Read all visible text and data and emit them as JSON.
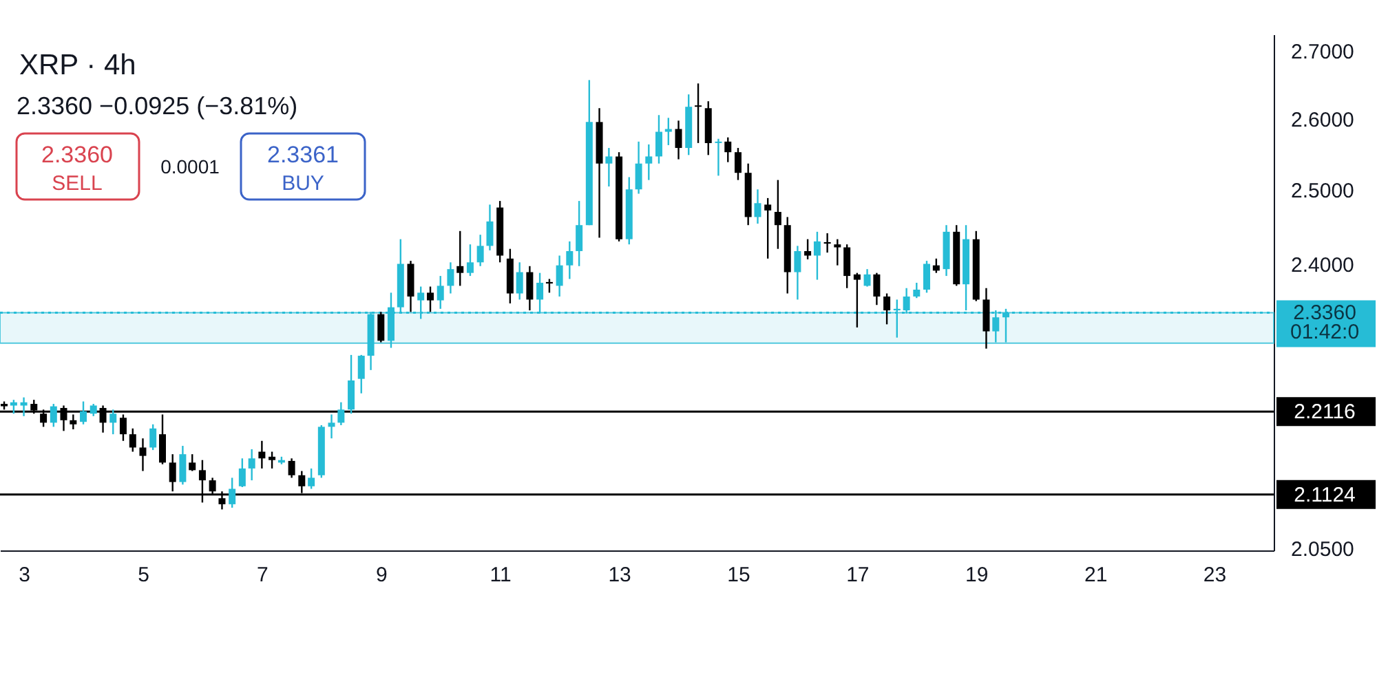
{
  "chart_data": {
    "type": "candlestick",
    "title": "XRP · 4h",
    "subtitle": "2.3360 −0.0925 (−3.81%)",
    "annotations": [
      "2.3360",
      "SELL",
      "0.0001",
      "2.3361",
      "BUY",
      "01:42:0"
    ],
    "x": [
      2.67,
      2.83,
      3,
      3.17,
      3.33,
      3.5,
      3.67,
      3.83,
      4,
      4.17,
      4.33,
      4.5,
      4.67,
      4.83,
      5,
      5.17,
      5.33,
      5.5,
      5.67,
      5.83,
      6,
      6.17,
      6.33,
      6.5,
      6.67,
      6.83,
      7,
      7.17,
      7.33,
      7.5,
      7.67,
      7.83,
      8,
      8.17,
      8.33,
      8.5,
      8.67,
      8.83,
      9,
      9.17,
      9.33,
      9.5,
      9.67,
      9.83,
      10,
      10.17,
      10.33,
      10.5,
      10.67,
      10.83,
      11,
      11.17,
      11.33,
      11.5,
      11.67,
      11.83,
      12,
      12.17,
      12.33,
      12.5,
      12.67,
      12.83,
      13,
      13.17,
      13.33,
      13.5,
      13.67,
      13.83,
      14,
      14.17,
      14.33,
      14.5,
      14.67,
      14.83,
      15,
      15.17,
      15.33,
      15.5,
      15.67,
      15.83,
      16,
      16.17,
      16.33,
      16.5,
      16.67,
      16.83,
      17,
      17.17,
      17.33,
      17.5,
      17.67,
      17.83,
      18,
      18.17,
      18.33,
      18.5,
      18.67,
      18.83,
      19,
      19.17,
      19.33,
      19.5
    ],
    "ohlc": [
      [
        2.221,
        2.224,
        2.214,
        2.218
      ],
      [
        2.219,
        2.226,
        2.209,
        2.223
      ],
      [
        2.219,
        2.229,
        2.206,
        2.223
      ],
      [
        2.221,
        2.226,
        2.209,
        2.213
      ],
      [
        2.209,
        2.214,
        2.193,
        2.198
      ],
      [
        2.198,
        2.221,
        2.193,
        2.218
      ],
      [
        2.216,
        2.219,
        2.188,
        2.201
      ],
      [
        2.201,
        2.208,
        2.19,
        2.196
      ],
      [
        2.199,
        2.224,
        2.196,
        2.212
      ],
      [
        2.209,
        2.221,
        2.206,
        2.219
      ],
      [
        2.216,
        2.219,
        2.186,
        2.198
      ],
      [
        2.198,
        2.214,
        2.184,
        2.209
      ],
      [
        2.204,
        2.208,
        2.176,
        2.184
      ],
      [
        2.184,
        2.191,
        2.163,
        2.168
      ],
      [
        2.168,
        2.179,
        2.14,
        2.158
      ],
      [
        2.168,
        2.196,
        2.165,
        2.191
      ],
      [
        2.184,
        2.208,
        2.148,
        2.15
      ],
      [
        2.15,
        2.16,
        2.116,
        2.127
      ],
      [
        2.127,
        2.17,
        2.124,
        2.16
      ],
      [
        2.15,
        2.16,
        2.14,
        2.141
      ],
      [
        2.141,
        2.153,
        2.103,
        2.129
      ],
      [
        2.129,
        2.132,
        2.113,
        2.116
      ],
      [
        2.108,
        2.116,
        2.095,
        2.101
      ],
      [
        2.101,
        2.132,
        2.097,
        2.119
      ],
      [
        2.122,
        2.155,
        2.121,
        2.143
      ],
      [
        2.143,
        2.166,
        2.129,
        2.155
      ],
      [
        2.163,
        2.176,
        2.143,
        2.155
      ],
      [
        2.157,
        2.163,
        2.143,
        2.153
      ],
      [
        2.15,
        2.157,
        2.148,
        2.153
      ],
      [
        2.152,
        2.155,
        2.132,
        2.135
      ],
      [
        2.135,
        2.14,
        2.114,
        2.122
      ],
      [
        2.122,
        2.143,
        2.119,
        2.132
      ],
      [
        2.135,
        2.195,
        2.132,
        2.193
      ],
      [
        2.193,
        2.208,
        2.179,
        2.198
      ],
      [
        2.198,
        2.223,
        2.195,
        2.214
      ],
      [
        2.214,
        2.282,
        2.209,
        2.25
      ],
      [
        2.252,
        2.282,
        2.234,
        2.281
      ],
      [
        2.281,
        2.337,
        2.263,
        2.334
      ],
      [
        2.334,
        2.337,
        2.298,
        2.3
      ],
      [
        2.3,
        2.362,
        2.291,
        2.343
      ],
      [
        2.343,
        2.433,
        2.337,
        2.4
      ],
      [
        2.4,
        2.404,
        2.337,
        2.357
      ],
      [
        2.352,
        2.37,
        2.328,
        2.362
      ],
      [
        2.362,
        2.37,
        2.337,
        2.352
      ],
      [
        2.352,
        2.384,
        2.341,
        2.371
      ],
      [
        2.371,
        2.402,
        2.361,
        2.393
      ],
      [
        2.397,
        2.444,
        2.371,
        2.388
      ],
      [
        2.388,
        2.426,
        2.384,
        2.402
      ],
      [
        2.402,
        2.439,
        2.397,
        2.424
      ],
      [
        2.424,
        2.48,
        2.418,
        2.457
      ],
      [
        2.476,
        2.485,
        2.402,
        2.411
      ],
      [
        2.407,
        2.42,
        2.348,
        2.361
      ],
      [
        2.361,
        2.402,
        2.353,
        2.389
      ],
      [
        2.389,
        2.397,
        2.339,
        2.353
      ],
      [
        2.353,
        2.388,
        2.335,
        2.375
      ],
      [
        2.376,
        2.38,
        2.362,
        2.374
      ],
      [
        2.371,
        2.411,
        2.357,
        2.398
      ],
      [
        2.398,
        2.43,
        2.38,
        2.417
      ],
      [
        2.417,
        2.485,
        2.397,
        2.452
      ],
      [
        2.452,
        2.657,
        2.452,
        2.596
      ],
      [
        2.596,
        2.616,
        2.435,
        2.537
      ],
      [
        2.537,
        2.559,
        2.505,
        2.547
      ],
      [
        2.547,
        2.553,
        2.43,
        2.433
      ],
      [
        2.433,
        2.518,
        2.426,
        2.501
      ],
      [
        2.501,
        2.568,
        2.495,
        2.537
      ],
      [
        2.537,
        2.564,
        2.514,
        2.547
      ],
      [
        2.547,
        2.606,
        2.537,
        2.582
      ],
      [
        2.582,
        2.602,
        2.563,
        2.586
      ],
      [
        2.586,
        2.598,
        2.543,
        2.559
      ],
      [
        2.559,
        2.636,
        2.549,
        2.618
      ],
      [
        2.62,
        2.652,
        2.566,
        2.618
      ],
      [
        2.616,
        2.626,
        2.549,
        2.566
      ],
      [
        2.566,
        2.572,
        2.52,
        2.568
      ],
      [
        2.568,
        2.574,
        2.539,
        2.553
      ],
      [
        2.553,
        2.559,
        2.514,
        2.524
      ],
      [
        2.524,
        2.537,
        2.452,
        2.463
      ],
      [
        2.463,
        2.501,
        2.454,
        2.482
      ],
      [
        2.48,
        2.489,
        2.407,
        2.472
      ],
      [
        2.47,
        2.514,
        2.42,
        2.452
      ],
      [
        2.452,
        2.463,
        2.361,
        2.389
      ],
      [
        2.389,
        2.424,
        2.353,
        2.417
      ],
      [
        2.417,
        2.433,
        2.406,
        2.411
      ],
      [
        2.411,
        2.443,
        2.379,
        2.43
      ],
      [
        2.429,
        2.441,
        2.415,
        2.427
      ],
      [
        2.426,
        2.433,
        2.398,
        2.422
      ],
      [
        2.422,
        2.426,
        2.368,
        2.384
      ],
      [
        2.386,
        2.388,
        2.317,
        2.379
      ],
      [
        2.371,
        2.393,
        2.37,
        2.386
      ],
      [
        2.386,
        2.388,
        2.346,
        2.357
      ],
      [
        2.357,
        2.361,
        2.321,
        2.339
      ],
      [
        2.339,
        2.353,
        2.304,
        2.341
      ],
      [
        2.339,
        2.368,
        2.335,
        2.357
      ],
      [
        2.357,
        2.375,
        2.355,
        2.366
      ],
      [
        2.366,
        2.404,
        2.362,
        2.4
      ],
      [
        2.398,
        2.407,
        2.388,
        2.391
      ],
      [
        2.393,
        2.452,
        2.384,
        2.443
      ],
      [
        2.443,
        2.452,
        2.371,
        2.373
      ],
      [
        2.373,
        2.452,
        2.339,
        2.433
      ],
      [
        2.433,
        2.444,
        2.351,
        2.353
      ],
      [
        2.353,
        2.368,
        2.29,
        2.312
      ],
      [
        2.312,
        2.339,
        2.298,
        2.33
      ],
      [
        2.33,
        2.341,
        2.298,
        2.336
      ]
    ],
    "colors": [
      "#000000",
      "#26bcd6",
      "#26bcd6",
      "#000000",
      "#000000",
      "#26bcd6",
      "#000000",
      "#000000",
      "#26bcd6",
      "#26bcd6",
      "#000000",
      "#26bcd6",
      "#000000",
      "#000000",
      "#000000",
      "#26bcd6",
      "#000000",
      "#000000",
      "#26bcd6",
      "#000000",
      "#000000",
      "#000000",
      "#000000",
      "#26bcd6",
      "#26bcd6",
      "#26bcd6",
      "#000000",
      "#000000",
      "#26bcd6",
      "#000000",
      "#000000",
      "#26bcd6",
      "#26bcd6",
      "#26bcd6",
      "#26bcd6",
      "#26bcd6",
      "#26bcd6",
      "#26bcd6",
      "#000000",
      "#26bcd6",
      "#26bcd6",
      "#000000",
      "#26bcd6",
      "#000000",
      "#26bcd6",
      "#26bcd6",
      "#000000",
      "#26bcd6",
      "#26bcd6",
      "#26bcd6",
      "#000000",
      "#000000",
      "#26bcd6",
      "#000000",
      "#26bcd6",
      "#000000",
      "#26bcd6",
      "#26bcd6",
      "#26bcd6",
      "#26bcd6",
      "#000000",
      "#26bcd6",
      "#000000",
      "#26bcd6",
      "#26bcd6",
      "#26bcd6",
      "#26bcd6",
      "#26bcd6",
      "#000000",
      "#26bcd6",
      "#000000",
      "#000000",
      "#26bcd6",
      "#000000",
      "#000000",
      "#000000",
      "#26bcd6",
      "#000000",
      "#000000",
      "#000000",
      "#26bcd6",
      "#000000",
      "#26bcd6",
      "#000000",
      "#000000",
      "#000000",
      "#000000",
      "#26bcd6",
      "#000000",
      "#000000",
      "#26bcd6",
      "#26bcd6",
      "#26bcd6",
      "#26bcd6",
      "#000000",
      "#26bcd6",
      "#000000",
      "#26bcd6",
      "#000000",
      "#000000",
      "#26bcd6",
      "#26bcd6"
    ],
    "xlim": [
      2.6,
      24
    ],
    "xticks": [
      3,
      5,
      7,
      9,
      11,
      13,
      15,
      17,
      19,
      21,
      23
    ],
    "log": true,
    "ylim": [
      2.048,
      2.725
    ],
    "yticks": [
      {
        "value": 2.05,
        "label": "2.0500"
      },
      {
        "value": 2.4,
        "label": "2.4000"
      },
      {
        "value": 2.5,
        "label": "2.5000"
      },
      {
        "value": 2.6,
        "label": "2.6000"
      },
      {
        "value": 2.7,
        "label": "2.7000"
      }
    ],
    "ref_lines": [
      {
        "axis": "y",
        "value": 2.336,
        "label": "2.3360",
        "color": "#26bcd6",
        "line_style": "dotted"
      },
      {
        "axis": "y",
        "value": 2.2116,
        "label": "2.2116",
        "color": "#000000"
      },
      {
        "axis": "y",
        "value": 2.1124,
        "label": "2.1124",
        "color": "#000000"
      }
    ],
    "bands": [
      {
        "axis": "y",
        "from": 2.297,
        "to": 2.336,
        "color": "#e3f6f9"
      }
    ],
    "grid": false
  }
}
